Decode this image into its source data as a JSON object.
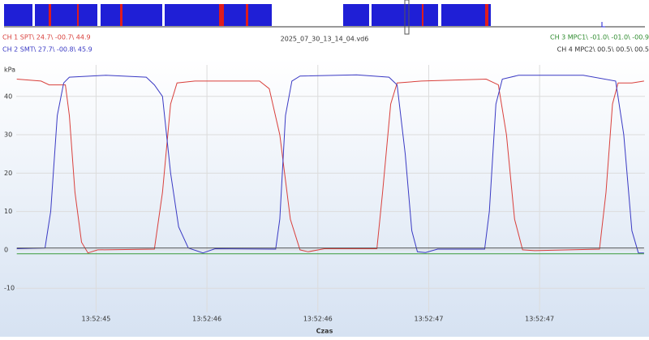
{
  "header": {
    "file": "2025_07_30_13_14_04.vd6",
    "channels": [
      "CH 1 SPT\\ 24.7\\ -00.7\\ 44.9",
      "CH 2 SMT\\ 27.7\\ -00.8\\ 45.9",
      "CH 3 MPC1\\ -01.0\\ -01.0\\ -00.9",
      "CH 4 MPC2\\ 00.5\\ 00.5\\ 00.5"
    ]
  },
  "chart_data": {
    "type": "line",
    "y_label": "kPa",
    "x_label": "Czas",
    "ylim": [
      -16.3,
      48.2
    ],
    "yticks": [
      -10,
      0,
      10,
      20,
      30,
      40
    ],
    "xlim": [
      0.28,
      5.95
    ],
    "xticks": [
      {
        "value": 1,
        "label": "13:52:45"
      },
      {
        "value": 2,
        "label": "13:52:46"
      },
      {
        "value": 3,
        "label": "13:52:46"
      },
      {
        "value": 4,
        "label": "13:52:47"
      },
      {
        "value": 5,
        "label": "13:52:47"
      }
    ],
    "grid": true,
    "series": [
      {
        "color": "#d9403c",
        "x": [
          0.285,
          0.504,
          0.577,
          0.723,
          0.759,
          0.81,
          0.869,
          0.927,
          1.015,
          1.526,
          1.599,
          1.672,
          1.73,
          1.891,
          2.474,
          2.562,
          2.657,
          2.752,
          2.839,
          2.912,
          3.058,
          3.533,
          3.584,
          3.657,
          3.715,
          3.934,
          4.518,
          4.628,
          4.701,
          4.774,
          4.847,
          4.956,
          5.54,
          5.599,
          5.657,
          5.708,
          5.832,
          5.942
        ],
        "values": [
          44.5,
          44,
          43,
          43,
          35,
          15,
          2,
          -0.8,
          0,
          0.2,
          15,
          38,
          43.5,
          44,
          44,
          42,
          30,
          8,
          0,
          -0.5,
          0.3,
          0.3,
          15,
          38,
          43.5,
          44,
          44.5,
          43,
          30,
          8,
          0,
          -0.2,
          0.2,
          15,
          38,
          43.5,
          43.5,
          44
        ]
      },
      {
        "color": "#3a3ac4",
        "x": [
          0.285,
          0.54,
          0.591,
          0.65,
          0.708,
          0.759,
          1.088,
          1.453,
          1.526,
          1.599,
          1.672,
          1.745,
          1.832,
          1.964,
          2.073,
          2.62,
          2.657,
          2.708,
          2.766,
          2.839,
          3.35,
          3.642,
          3.715,
          3.788,
          3.847,
          3.898,
          3.971,
          4.08,
          4.504,
          4.547,
          4.606,
          4.664,
          4.81,
          5.394,
          5.686,
          5.759,
          5.832,
          5.891,
          5.942
        ],
        "values": [
          0.3,
          0.5,
          10,
          35,
          43.5,
          45,
          45.5,
          45,
          43,
          40,
          20,
          6,
          0.5,
          -0.8,
          0.3,
          0.2,
          8,
          35,
          44,
          45.3,
          45.6,
          45,
          43,
          25,
          5,
          -0.5,
          -0.7,
          0.2,
          0.2,
          10,
          38,
          44.5,
          45.5,
          45.5,
          44,
          30,
          5,
          -0.8,
          -0.8
        ]
      },
      {
        "color": "#3a9a3a",
        "x": [
          0.285,
          5.942
        ],
        "values": [
          -1,
          -1
        ]
      },
      {
        "color": "#555555",
        "x": [
          0.285,
          5.942
        ],
        "values": [
          0.5,
          0.5
        ]
      }
    ]
  }
}
